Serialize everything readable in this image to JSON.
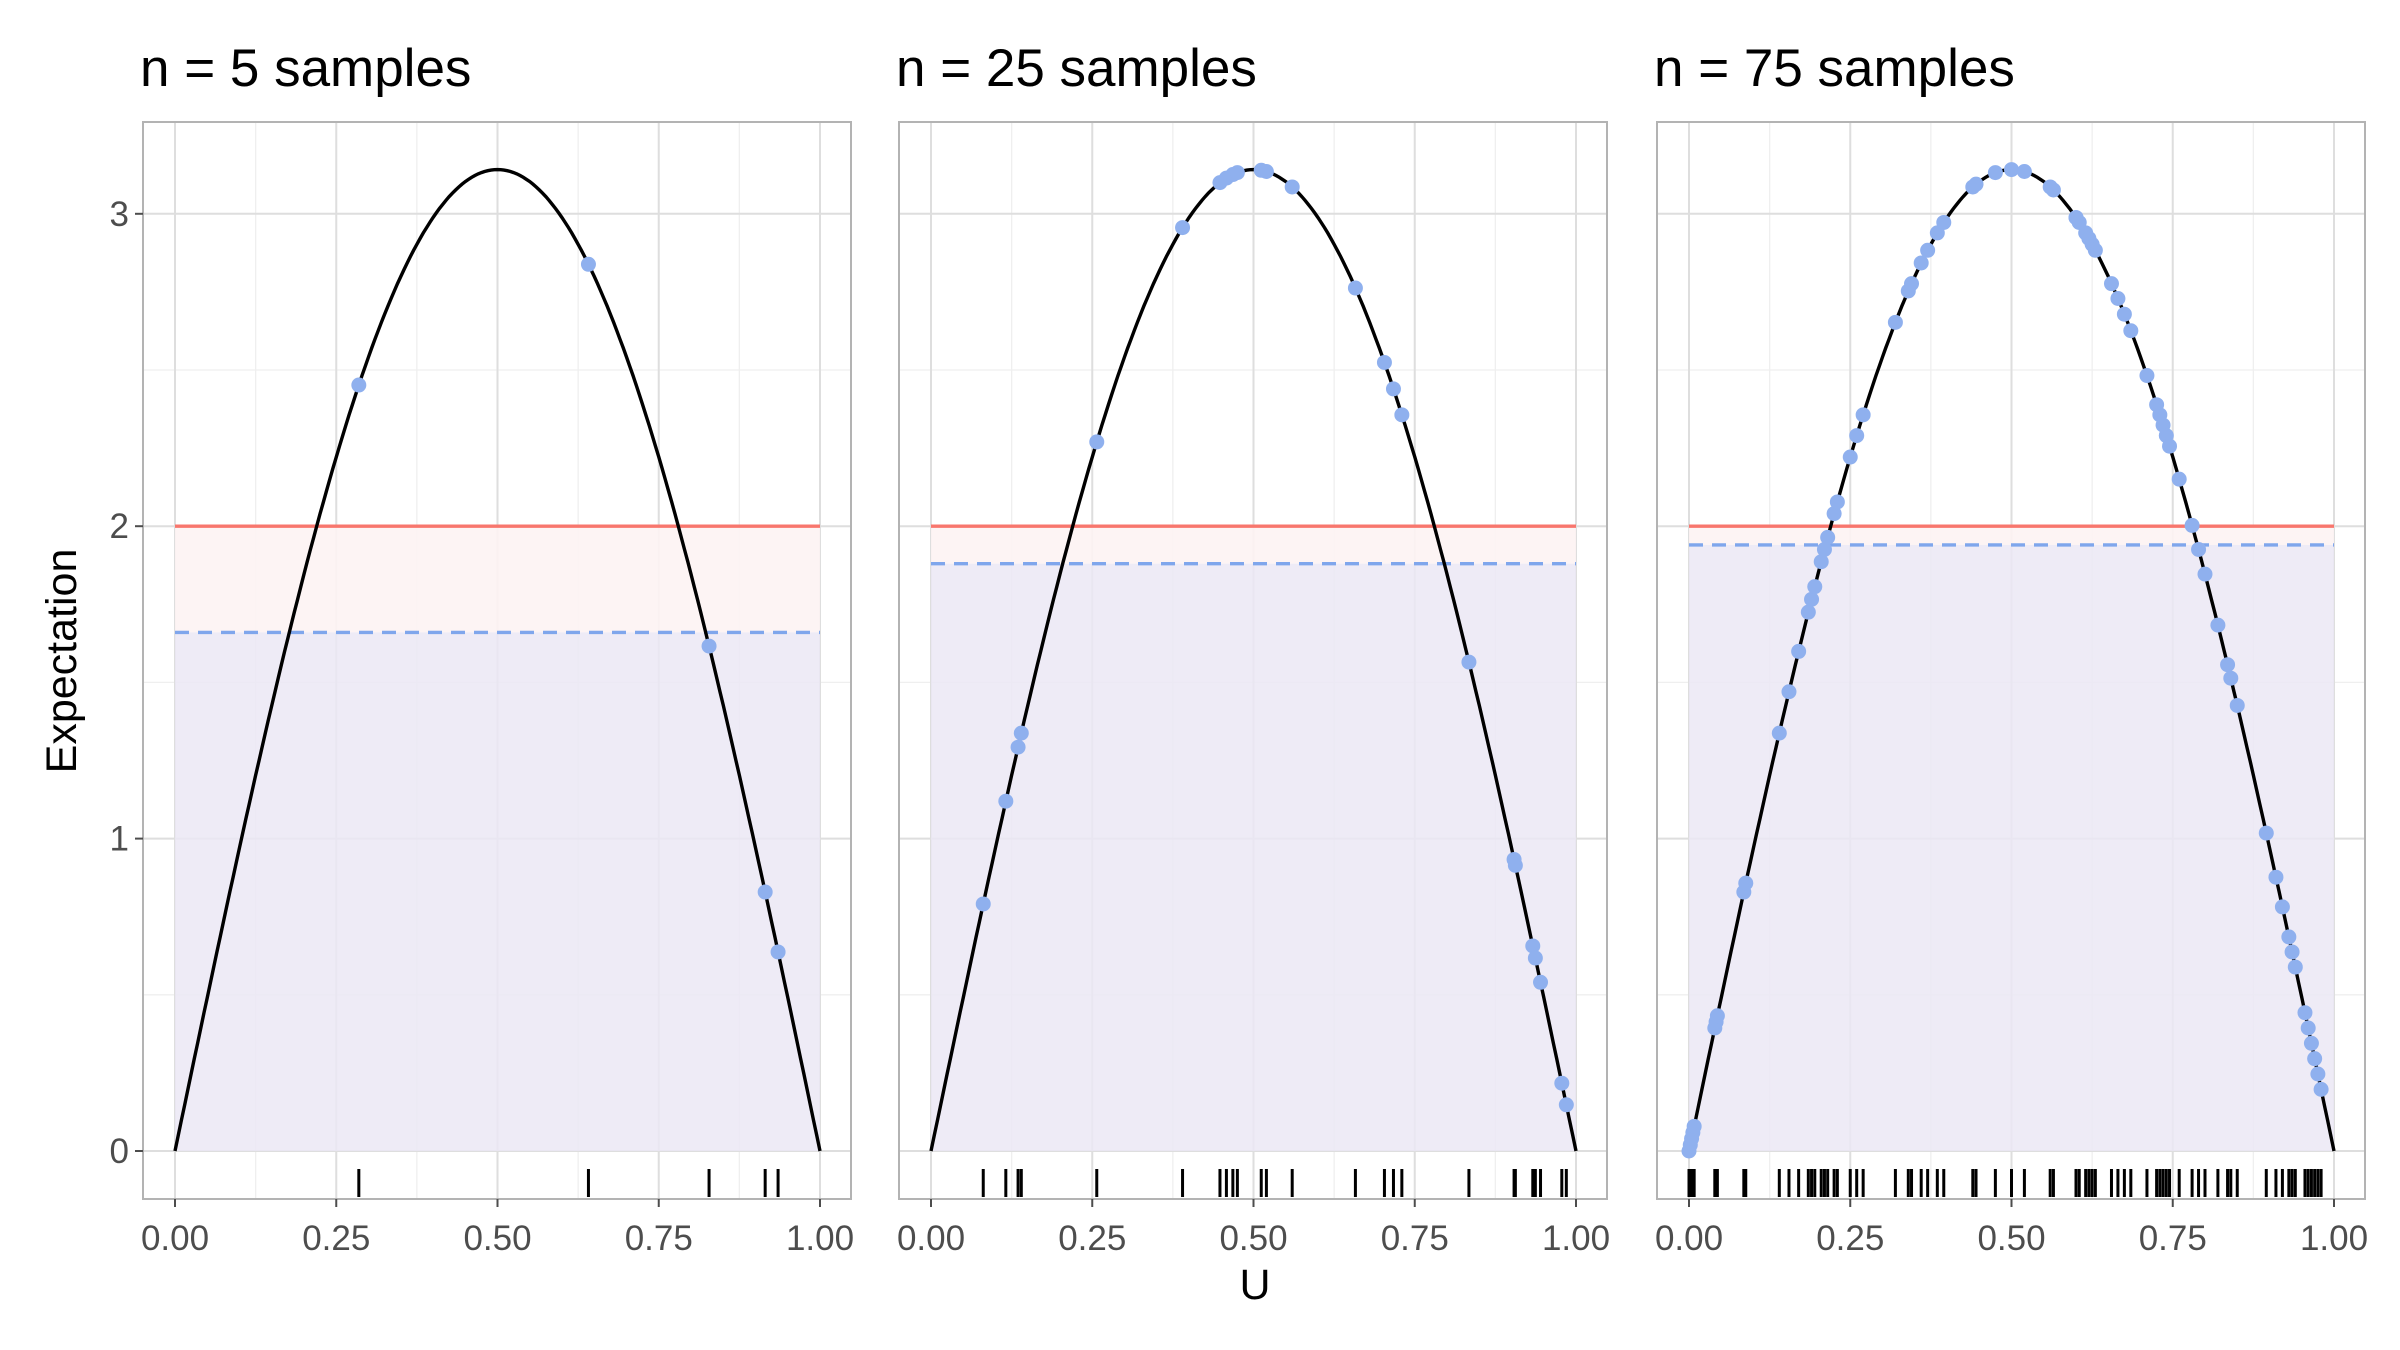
{
  "colors": {
    "curve": "#000000",
    "true_line": "#f8766d",
    "estimate_line": "#7fa6ec",
    "points": "#8fb0ee",
    "estimate_fill": "#ebe8f5",
    "gap_fill": "#fdf3f3",
    "rug": "#000000",
    "panel_border": "#b3b3b3",
    "grid_major": "#dedede",
    "grid_minor": "#efefef"
  },
  "chart_data": {
    "type": "scatter",
    "function": "pi*sin(pi*U)",
    "xlabel": "U",
    "ylabel": "Expectation",
    "xlim": [
      0,
      1
    ],
    "ylim": [
      0,
      3.1416
    ],
    "x_ticks": [
      "0.00",
      "0.25",
      "0.50",
      "0.75",
      "1.00"
    ],
    "y_ticks": [
      "0",
      "1",
      "2",
      "3"
    ],
    "grid": true,
    "true_value": 2,
    "panels": [
      {
        "title": "n = 5 samples",
        "estimate": 1.66,
        "samples": [
          0.285,
          0.641,
          0.828,
          0.915,
          0.935
        ]
      },
      {
        "title": "n = 25 samples",
        "estimate": 1.88,
        "samples": [
          0.081,
          0.116,
          0.135,
          0.14,
          0.257,
          0.39,
          0.448,
          0.458,
          0.468,
          0.475,
          0.512,
          0.52,
          0.56,
          0.658,
          0.703,
          0.717,
          0.73,
          0.834,
          0.904,
          0.906,
          0.933,
          0.937,
          0.945,
          0.978,
          0.985
        ]
      },
      {
        "title": "n = 75 samples",
        "estimate": 1.94,
        "samples": [
          0.0,
          0.002,
          0.004,
          0.006,
          0.008,
          0.04,
          0.042,
          0.044,
          0.085,
          0.088,
          0.14,
          0.155,
          0.17,
          0.185,
          0.19,
          0.195,
          0.205,
          0.21,
          0.215,
          0.225,
          0.23,
          0.25,
          0.26,
          0.27,
          0.32,
          0.34,
          0.345,
          0.36,
          0.37,
          0.385,
          0.395,
          0.44,
          0.445,
          0.475,
          0.5,
          0.52,
          0.56,
          0.565,
          0.6,
          0.6,
          0.605,
          0.615,
          0.62,
          0.625,
          0.63,
          0.655,
          0.665,
          0.675,
          0.685,
          0.71,
          0.725,
          0.73,
          0.735,
          0.74,
          0.745,
          0.76,
          0.78,
          0.79,
          0.8,
          0.82,
          0.835,
          0.84,
          0.85,
          0.895,
          0.91,
          0.92,
          0.93,
          0.935,
          0.94,
          0.955,
          0.96,
          0.965,
          0.97,
          0.975,
          0.98
        ]
      }
    ]
  }
}
